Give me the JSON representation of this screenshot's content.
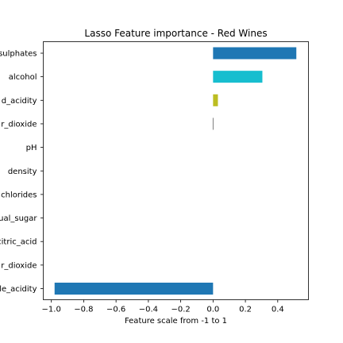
{
  "chart_data": {
    "type": "bar",
    "orientation": "horizontal",
    "title": "Lasso Feature importance - Red Wines",
    "xlabel": "Feature scale from -1 to 1",
    "ylabel": "",
    "xlim": [
      -1.05,
      0.59
    ],
    "xticks": [
      -1.0,
      -0.8,
      -0.6,
      -0.4,
      -0.2,
      0.0,
      0.2,
      0.4
    ],
    "xtick_labels": [
      "−1.0",
      "−0.8",
      "−0.6",
      "−0.4",
      "−0.2",
      "0.0",
      "0.2",
      "0.4"
    ],
    "grid": false,
    "categories": [
      "volatile_acidity",
      "free_sulfur_dioxide",
      "citric_acid",
      "residual_sugar",
      "chlorides",
      "density",
      "pH",
      "total_sulfur_dioxide",
      "fixed_acidity",
      "alcohol",
      "sulphates"
    ],
    "category_labels_visible": [
      "le_acidity",
      "r_dioxide",
      "citric_acid",
      "ual_sugar",
      "chlorides",
      "density",
      "pH",
      "r_dioxide",
      "d_acidity",
      "alcohol",
      "sulphates"
    ],
    "values": [
      -0.98,
      0.0,
      0.0,
      0.0,
      0.0,
      0.0,
      0.0,
      -0.002,
      0.03,
      0.305,
      0.515
    ],
    "colors": [
      "#1f77b4",
      "#1f77b4",
      "#1f77b4",
      "#1f77b4",
      "#1f77b4",
      "#1f77b4",
      "#1f77b4",
      "#7f7f7f",
      "#bcbd22",
      "#17becf",
      "#1f77b4"
    ]
  }
}
